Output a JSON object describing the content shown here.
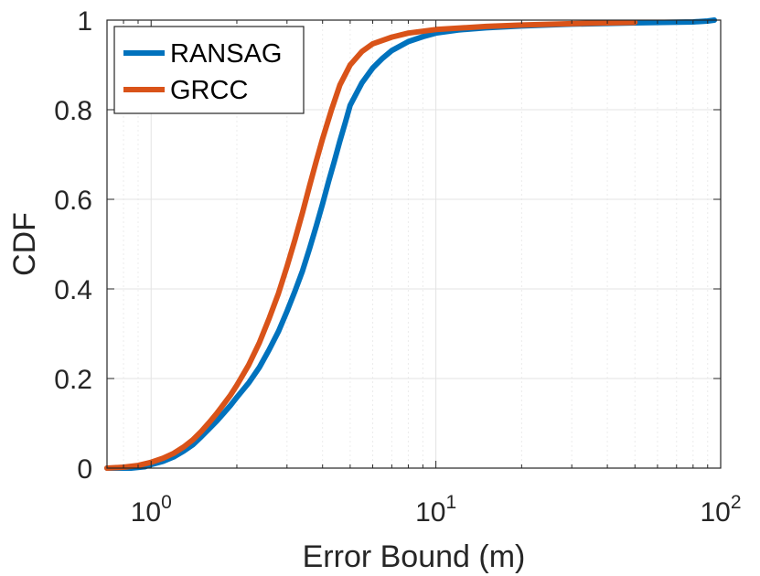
{
  "chart_data": {
    "type": "line",
    "title": "",
    "xlabel": "Error Bound (m)",
    "ylabel": "CDF",
    "xscale": "log",
    "xlim": [
      0.7,
      100
    ],
    "ylim": [
      0,
      1
    ],
    "x_ticks": [
      {
        "value": 1,
        "base": "10",
        "exp": "0"
      },
      {
        "value": 10,
        "base": "10",
        "exp": "1"
      },
      {
        "value": 100,
        "base": "10",
        "exp": "2"
      }
    ],
    "y_ticks": [
      {
        "value": 0,
        "label": "0"
      },
      {
        "value": 0.2,
        "label": "0.2"
      },
      {
        "value": 0.4,
        "label": "0.4"
      },
      {
        "value": 0.6,
        "label": "0.6"
      },
      {
        "value": 0.8,
        "label": "0.8"
      },
      {
        "value": 1,
        "label": "1"
      }
    ],
    "grid": true,
    "legend_position": "top-left",
    "series": [
      {
        "name": "RANSAG",
        "color": "#0072BD",
        "points": [
          [
            0.7,
            0.0
          ],
          [
            0.85,
            0.0
          ],
          [
            0.95,
            0.003
          ],
          [
            1.0,
            0.008
          ],
          [
            1.1,
            0.015
          ],
          [
            1.2,
            0.025
          ],
          [
            1.3,
            0.038
          ],
          [
            1.4,
            0.052
          ],
          [
            1.5,
            0.07
          ],
          [
            1.6,
            0.088
          ],
          [
            1.7,
            0.105
          ],
          [
            1.8,
            0.123
          ],
          [
            1.9,
            0.14
          ],
          [
            2.0,
            0.158
          ],
          [
            2.2,
            0.19
          ],
          [
            2.4,
            0.225
          ],
          [
            2.6,
            0.265
          ],
          [
            2.8,
            0.305
          ],
          [
            3.0,
            0.35
          ],
          [
            3.2,
            0.395
          ],
          [
            3.4,
            0.44
          ],
          [
            3.6,
            0.49
          ],
          [
            3.8,
            0.54
          ],
          [
            4.0,
            0.59
          ],
          [
            4.2,
            0.64
          ],
          [
            4.4,
            0.685
          ],
          [
            4.6,
            0.73
          ],
          [
            4.8,
            0.77
          ],
          [
            5.0,
            0.81
          ],
          [
            5.5,
            0.86
          ],
          [
            6.0,
            0.893
          ],
          [
            6.5,
            0.915
          ],
          [
            7.0,
            0.932
          ],
          [
            8.0,
            0.952
          ],
          [
            9.0,
            0.963
          ],
          [
            10.0,
            0.971
          ],
          [
            12.0,
            0.978
          ],
          [
            15.0,
            0.983
          ],
          [
            20.0,
            0.987
          ],
          [
            30.0,
            0.991
          ],
          [
            50.0,
            0.994
          ],
          [
            80.0,
            0.996
          ],
          [
            90.0,
            0.998
          ],
          [
            95.0,
            1.0
          ]
        ]
      },
      {
        "name": "GRCC",
        "color": "#D95319",
        "points": [
          [
            0.7,
            0.0
          ],
          [
            0.8,
            0.002
          ],
          [
            0.9,
            0.006
          ],
          [
            1.0,
            0.013
          ],
          [
            1.1,
            0.022
          ],
          [
            1.2,
            0.033
          ],
          [
            1.3,
            0.047
          ],
          [
            1.4,
            0.063
          ],
          [
            1.5,
            0.082
          ],
          [
            1.6,
            0.102
          ],
          [
            1.7,
            0.122
          ],
          [
            1.8,
            0.143
          ],
          [
            1.9,
            0.163
          ],
          [
            2.0,
            0.185
          ],
          [
            2.2,
            0.23
          ],
          [
            2.4,
            0.28
          ],
          [
            2.6,
            0.335
          ],
          [
            2.8,
            0.39
          ],
          [
            3.0,
            0.45
          ],
          [
            3.2,
            0.51
          ],
          [
            3.4,
            0.57
          ],
          [
            3.6,
            0.63
          ],
          [
            3.8,
            0.685
          ],
          [
            4.0,
            0.735
          ],
          [
            4.3,
            0.8
          ],
          [
            4.6,
            0.855
          ],
          [
            5.0,
            0.9
          ],
          [
            5.5,
            0.93
          ],
          [
            6.0,
            0.947
          ],
          [
            7.0,
            0.962
          ],
          [
            8.0,
            0.971
          ],
          [
            10.0,
            0.979
          ],
          [
            15.0,
            0.986
          ],
          [
            20.0,
            0.989
          ],
          [
            30.0,
            0.992
          ],
          [
            40.0,
            0.994
          ],
          [
            50.0,
            0.995
          ]
        ]
      }
    ]
  }
}
